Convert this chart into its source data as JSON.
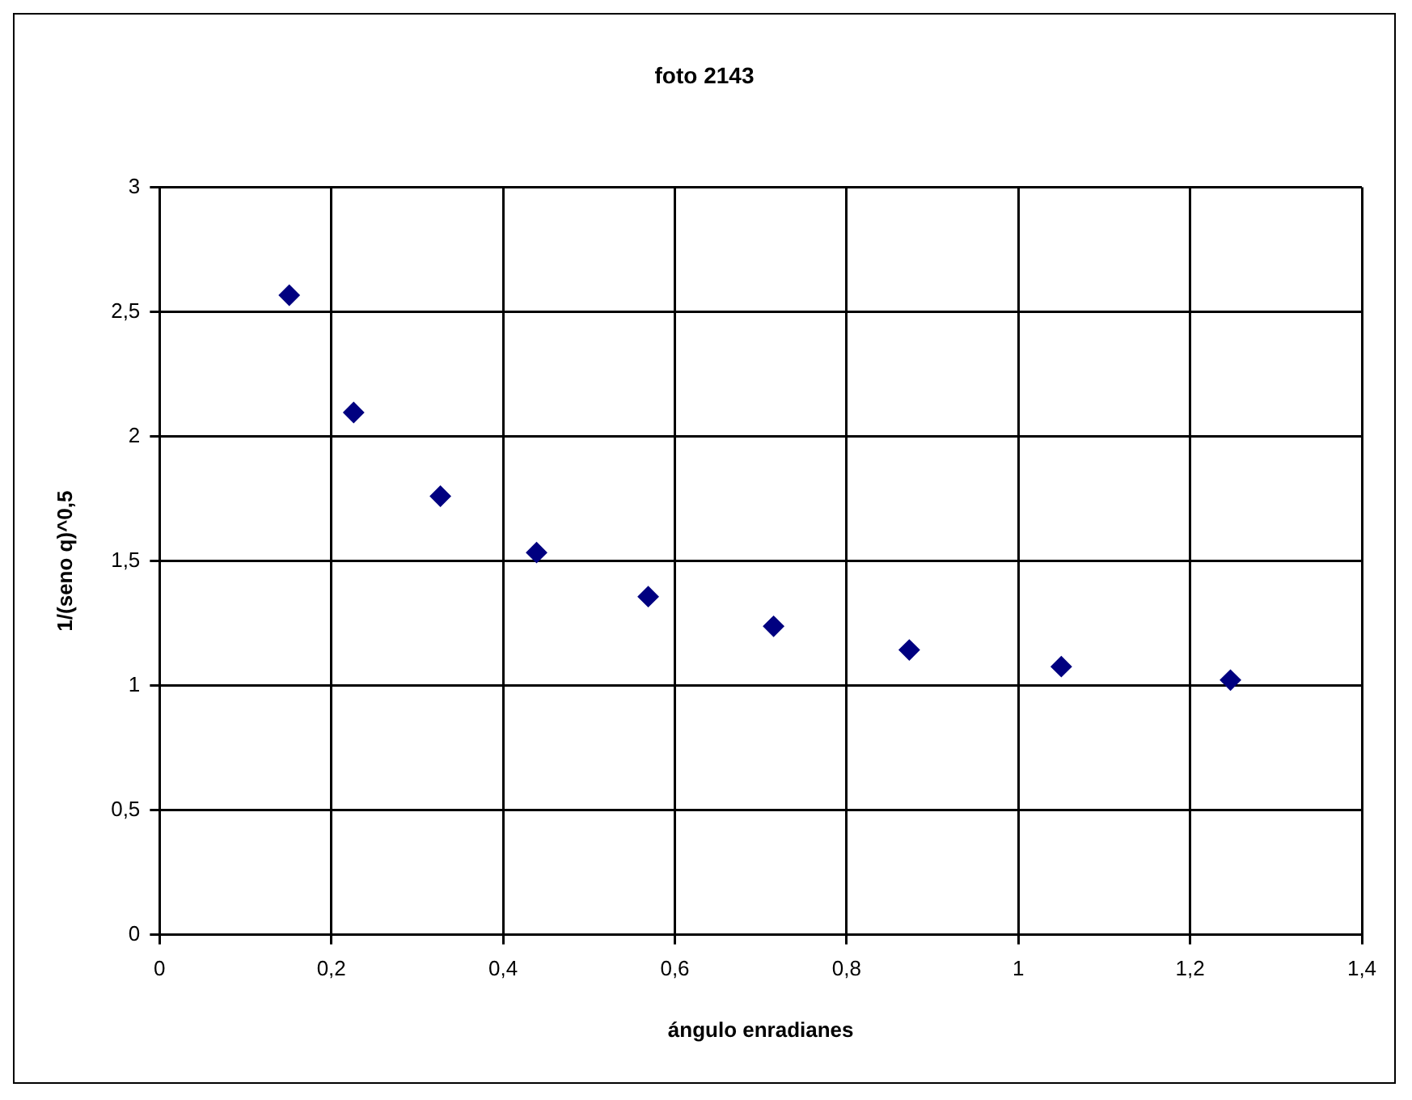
{
  "chart_data": {
    "type": "scatter",
    "title": "foto 2143",
    "xlabel": "ángulo enradianes",
    "ylabel": "1/(seno q)^0,5",
    "x": [
      0.151,
      0.226,
      0.327,
      0.439,
      0.569,
      0.715,
      0.873,
      1.05,
      1.247
    ],
    "values": [
      2.567,
      2.096,
      1.76,
      1.534,
      1.357,
      1.238,
      1.143,
      1.076,
      1.022
    ],
    "color": "#000080",
    "marker": "diamond",
    "grid": true,
    "legend": false,
    "xlim": [
      0,
      1.4
    ],
    "xticks": [
      0,
      {
        "value": 0.2,
        "label": "0,2"
      },
      {
        "value": 0.4,
        "label": "0,4"
      },
      {
        "value": 0.6,
        "label": "0,6"
      },
      {
        "value": 0.8,
        "label": "0,8"
      },
      1,
      {
        "value": 1.2,
        "label": "1,2"
      },
      {
        "value": 1.4,
        "label": "1,4"
      }
    ],
    "ylim": [
      0,
      3
    ],
    "yticks": [
      0,
      {
        "value": 0.5,
        "label": "0,5"
      },
      1,
      {
        "value": 1.5,
        "label": "1,5"
      },
      2,
      {
        "value": 2.5,
        "label": "2,5"
      },
      3
    ]
  }
}
